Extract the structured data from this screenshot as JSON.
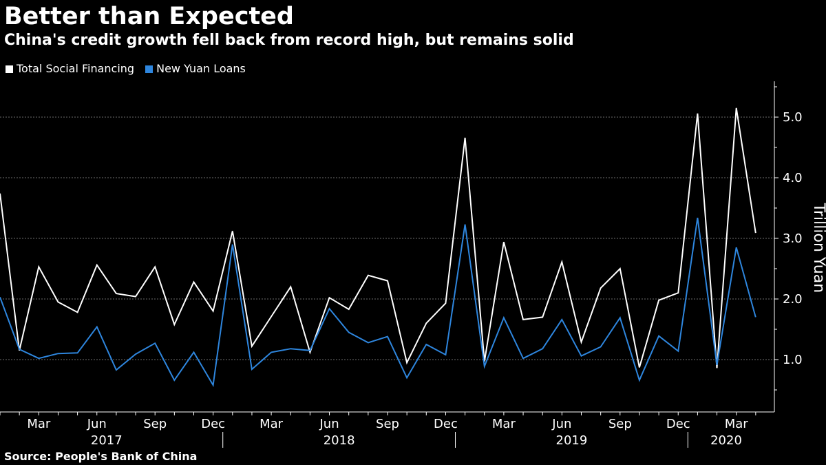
{
  "colors": {
    "background": "#000000",
    "text": "#ffffff",
    "grid": "#6e6e6e",
    "tsf": "#ffffff",
    "loans": "#2e86de"
  },
  "chart_data": {
    "type": "line",
    "title": "Better than Expected",
    "subtitle": "China's credit growth fell back from record high, but remains solid",
    "ylabel": "Trillion Yuan",
    "ylim": [
      0.5,
      5.6
    ],
    "yticks": [
      1.0,
      2.0,
      3.0,
      4.0,
      5.0
    ],
    "ytick_labels": [
      "1.0",
      "2.0",
      "3.0",
      "4.0",
      "5.0"
    ],
    "grid": true,
    "legend_position": "top-left",
    "x": [
      "2017-01",
      "2017-02",
      "2017-03",
      "2017-04",
      "2017-05",
      "2017-06",
      "2017-07",
      "2017-08",
      "2017-09",
      "2017-10",
      "2017-11",
      "2017-12",
      "2018-01",
      "2018-02",
      "2018-03",
      "2018-04",
      "2018-05",
      "2018-06",
      "2018-07",
      "2018-08",
      "2018-09",
      "2018-10",
      "2018-11",
      "2018-12",
      "2019-01",
      "2019-02",
      "2019-03",
      "2019-04",
      "2019-05",
      "2019-06",
      "2019-07",
      "2019-08",
      "2019-09",
      "2019-10",
      "2019-11",
      "2019-12",
      "2020-01",
      "2020-02",
      "2020-03",
      "2020-04"
    ],
    "x_tick_labels": [
      {
        "month": "2017-03",
        "label": "Mar"
      },
      {
        "month": "2017-06",
        "label": "Jun"
      },
      {
        "month": "2017-09",
        "label": "Sep"
      },
      {
        "month": "2017-12",
        "label": "Dec"
      },
      {
        "month": "2018-03",
        "label": "Mar"
      },
      {
        "month": "2018-06",
        "label": "Jun"
      },
      {
        "month": "2018-09",
        "label": "Sep"
      },
      {
        "month": "2018-12",
        "label": "Dec"
      },
      {
        "month": "2019-03",
        "label": "Mar"
      },
      {
        "month": "2019-06",
        "label": "Jun"
      },
      {
        "month": "2019-09",
        "label": "Sep"
      },
      {
        "month": "2019-12",
        "label": "Dec"
      },
      {
        "month": "2020-03",
        "label": "Mar"
      }
    ],
    "year_labels": [
      "2017",
      "2018",
      "2019",
      "2020"
    ],
    "series": [
      {
        "name": "Total Social Financing",
        "values": [
          3.74,
          1.15,
          2.53,
          1.95,
          1.78,
          2.56,
          2.09,
          2.04,
          2.53,
          1.58,
          2.28,
          1.8,
          3.12,
          1.22,
          1.71,
          2.2,
          1.12,
          2.02,
          1.83,
          2.39,
          2.3,
          0.95,
          1.6,
          1.93,
          4.66,
          0.97,
          2.94,
          1.66,
          1.7,
          2.61,
          1.29,
          2.18,
          2.5,
          0.87,
          1.98,
          2.1,
          5.06,
          0.86,
          5.15,
          3.09
        ]
      },
      {
        "name": "New Yuan Loans",
        "values": [
          2.03,
          1.17,
          1.02,
          1.1,
          1.11,
          1.54,
          0.83,
          1.09,
          1.27,
          0.66,
          1.12,
          0.58,
          2.9,
          0.84,
          1.12,
          1.18,
          1.15,
          1.84,
          1.45,
          1.28,
          1.38,
          0.7,
          1.25,
          1.08,
          3.23,
          0.89,
          1.69,
          1.02,
          1.18,
          1.66,
          1.06,
          1.21,
          1.69,
          0.66,
          1.39,
          1.14,
          3.34,
          0.91,
          2.85,
          1.7
        ]
      }
    ]
  },
  "source": "Source: People's Bank of China"
}
